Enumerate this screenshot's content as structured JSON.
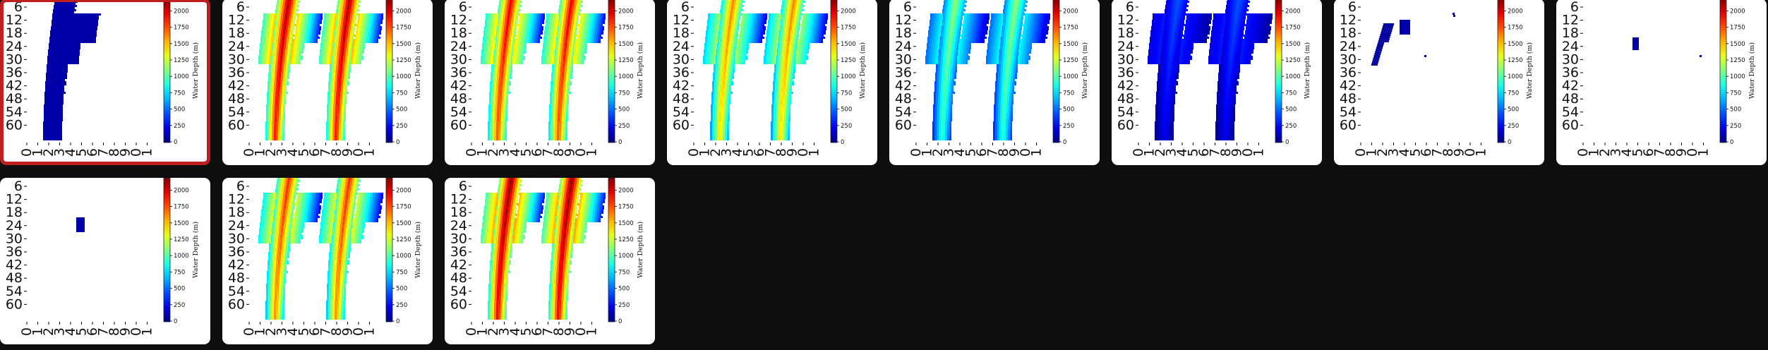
{
  "colorbar": {
    "label": "Water Depth (m)",
    "ticks": [
      "0",
      "250",
      "500",
      "750",
      "1000",
      "1250",
      "1500",
      "1750",
      "2000"
    ]
  },
  "yticks": [
    "6",
    "12",
    "18",
    "24",
    "30",
    "36",
    "42",
    "48",
    "54",
    "60"
  ],
  "xticks": [
    "0",
    "1",
    "2",
    "3",
    "4",
    "5",
    "6",
    "7",
    "8",
    "9",
    "0",
    "1"
  ],
  "gallery": {
    "tiles": [
      {
        "selected": true,
        "pattern": "single",
        "level": 0.05
      },
      {
        "selected": false,
        "pattern": "double",
        "level": 0.92
      },
      {
        "selected": false,
        "pattern": "double",
        "level": 0.86
      },
      {
        "selected": false,
        "pattern": "double",
        "level": 0.72
      },
      {
        "selected": false,
        "pattern": "double",
        "level": 0.5
      },
      {
        "selected": false,
        "pattern": "double",
        "level": 0.2
      },
      {
        "selected": false,
        "pattern": "sparse",
        "level": 0.03
      },
      {
        "selected": false,
        "pattern": "tiny",
        "level": 0.03
      },
      {
        "selected": false,
        "pattern": "speck",
        "level": 0.03
      },
      {
        "selected": false,
        "pattern": "double",
        "level": 0.8
      },
      {
        "selected": false,
        "pattern": "double",
        "level": 0.95
      }
    ]
  },
  "colors": {
    "background": "#0e0e0e",
    "tile": "#ffffff",
    "selected_border": "#c01f1f"
  }
}
